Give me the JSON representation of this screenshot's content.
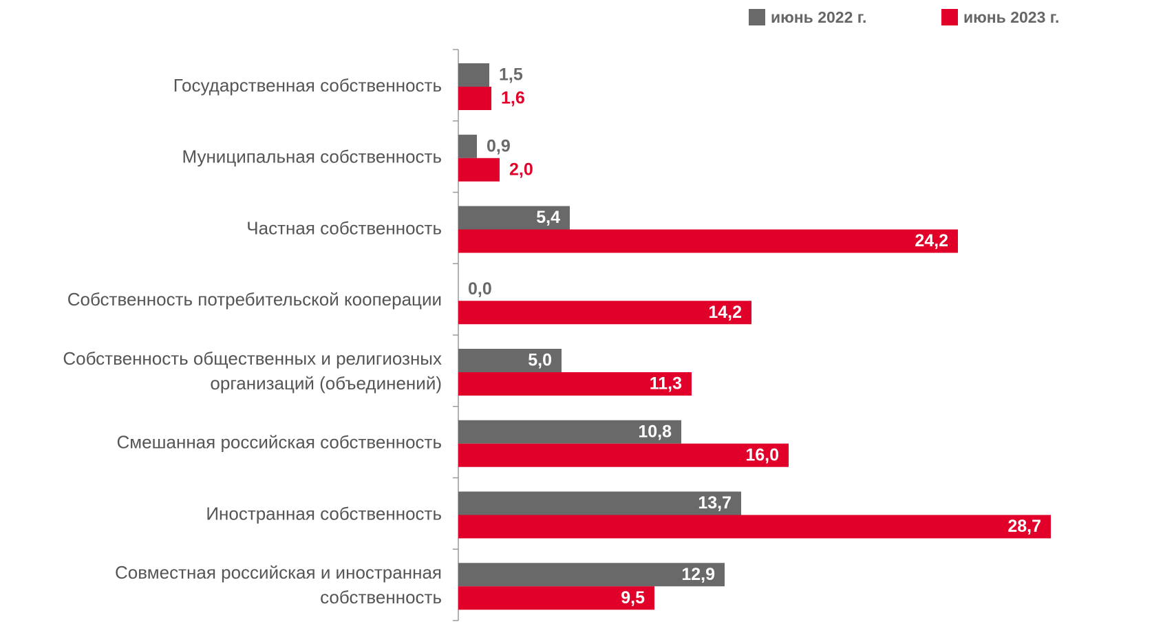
{
  "legend": {
    "series_2022": "июнь 2022 г.",
    "series_2023": "июнь 2023 г."
  },
  "colors": {
    "series_2022": "#696969",
    "series_2023": "#E0002A",
    "axis": "#9a9a9a",
    "category_text": "#555555"
  },
  "chart_data": {
    "type": "bar",
    "orientation": "horizontal",
    "categories": [
      [
        "Государственная собственность"
      ],
      [
        "Муниципальная собственность"
      ],
      [
        "Частная собственность"
      ],
      [
        "Собственность потребительской кооперации"
      ],
      [
        "Собственность общественных и религиозных",
        "организаций (объединений)"
      ],
      [
        "Смешанная российская собственность"
      ],
      [
        "Иностранная собственность"
      ],
      [
        "Совместная российская и иностранная",
        "собственность"
      ]
    ],
    "series": [
      {
        "name": "июнь 2022 г.",
        "values": [
          1.5,
          0.9,
          5.4,
          0.0,
          5.0,
          10.8,
          13.7,
          12.9
        ]
      },
      {
        "name": "июнь 2023 г.",
        "values": [
          1.6,
          2.0,
          24.2,
          14.2,
          11.3,
          16.0,
          28.7,
          9.5
        ]
      }
    ],
    "data_labels": [
      [
        "1,5",
        "0,9",
        "5,4",
        "0,0",
        "5,0",
        "10,8",
        "13,7",
        "12,9"
      ],
      [
        "1,6",
        "2,0",
        "24,2",
        "14,2",
        "11,3",
        "16,0",
        "28,7",
        "9,5"
      ]
    ],
    "xlim": [
      0,
      30
    ],
    "legend_position": "top-right",
    "grid": false
  }
}
